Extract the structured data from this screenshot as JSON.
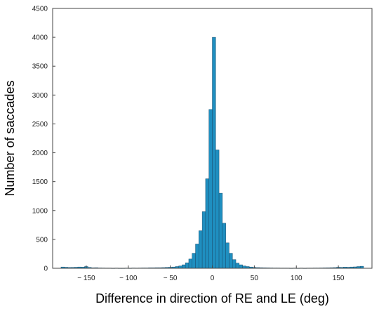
{
  "chart_data": {
    "type": "bar",
    "xlabel": "Difference in direction of RE and LE (deg)",
    "ylabel": "Number of saccades",
    "xlim": [
      -190,
      190
    ],
    "ylim": [
      0,
      4500
    ],
    "bin_width": 4,
    "bar_color": "#1f8fc0",
    "bar_edge_color": "#1a4f70",
    "x_ticks": [
      -150,
      -100,
      -50,
      0,
      50,
      100,
      150
    ],
    "x_tick_labels": [
      "− 150",
      "− 100",
      "− 50",
      "0",
      "50",
      "100",
      "150"
    ],
    "y_ticks": [
      0,
      500,
      1000,
      1500,
      2000,
      2500,
      3000,
      3500,
      4000,
      4500
    ],
    "y_tick_labels": [
      "0",
      "500",
      "1000",
      "1500",
      "2000",
      "2500",
      "3000",
      "3500",
      "4000",
      "4500"
    ],
    "bins": [
      {
        "x": -178,
        "y": 22
      },
      {
        "x": -174,
        "y": 18
      },
      {
        "x": -170,
        "y": 14
      },
      {
        "x": -166,
        "y": 15
      },
      {
        "x": -162,
        "y": 18
      },
      {
        "x": -158,
        "y": 22
      },
      {
        "x": -154,
        "y": 20
      },
      {
        "x": -150,
        "y": 30
      },
      {
        "x": -146,
        "y": 15
      },
      {
        "x": -142,
        "y": 8
      },
      {
        "x": -138,
        "y": 10
      },
      {
        "x": -134,
        "y": 6
      },
      {
        "x": -130,
        "y": 5
      },
      {
        "x": -126,
        "y": 4
      },
      {
        "x": -122,
        "y": 4
      },
      {
        "x": -118,
        "y": 3
      },
      {
        "x": -114,
        "y": 4
      },
      {
        "x": -110,
        "y": 3
      },
      {
        "x": -106,
        "y": 3
      },
      {
        "x": -102,
        "y": 4
      },
      {
        "x": -98,
        "y": 3
      },
      {
        "x": -94,
        "y": 5
      },
      {
        "x": -90,
        "y": 4
      },
      {
        "x": -86,
        "y": 5
      },
      {
        "x": -82,
        "y": 6
      },
      {
        "x": -78,
        "y": 6
      },
      {
        "x": -74,
        "y": 8
      },
      {
        "x": -70,
        "y": 8
      },
      {
        "x": -66,
        "y": 10
      },
      {
        "x": -62,
        "y": 10
      },
      {
        "x": -58,
        "y": 12
      },
      {
        "x": -54,
        "y": 15
      },
      {
        "x": -50,
        "y": 18
      },
      {
        "x": -46,
        "y": 22
      },
      {
        "x": -42,
        "y": 30
      },
      {
        "x": -38,
        "y": 40
      },
      {
        "x": -34,
        "y": 60
      },
      {
        "x": -30,
        "y": 95
      },
      {
        "x": -26,
        "y": 160
      },
      {
        "x": -22,
        "y": 260
      },
      {
        "x": -18,
        "y": 420
      },
      {
        "x": -14,
        "y": 650
      },
      {
        "x": -10,
        "y": 980
      },
      {
        "x": -6,
        "y": 1550
      },
      {
        "x": -2,
        "y": 2750
      },
      {
        "x": 2,
        "y": 4000
      },
      {
        "x": 6,
        "y": 2050
      },
      {
        "x": 10,
        "y": 1300
      },
      {
        "x": 14,
        "y": 780
      },
      {
        "x": 18,
        "y": 440
      },
      {
        "x": 22,
        "y": 260
      },
      {
        "x": 26,
        "y": 150
      },
      {
        "x": 30,
        "y": 90
      },
      {
        "x": 34,
        "y": 60
      },
      {
        "x": 38,
        "y": 40
      },
      {
        "x": 42,
        "y": 30
      },
      {
        "x": 46,
        "y": 22
      },
      {
        "x": 50,
        "y": 15
      },
      {
        "x": 54,
        "y": 12
      },
      {
        "x": 58,
        "y": 10
      },
      {
        "x": 62,
        "y": 8
      },
      {
        "x": 66,
        "y": 7
      },
      {
        "x": 70,
        "y": 6
      },
      {
        "x": 74,
        "y": 5
      },
      {
        "x": 78,
        "y": 5
      },
      {
        "x": 82,
        "y": 4
      },
      {
        "x": 86,
        "y": 4
      },
      {
        "x": 90,
        "y": 4
      },
      {
        "x": 94,
        "y": 3
      },
      {
        "x": 98,
        "y": 4
      },
      {
        "x": 102,
        "y": 3
      },
      {
        "x": 106,
        "y": 4
      },
      {
        "x": 110,
        "y": 3
      },
      {
        "x": 114,
        "y": 4
      },
      {
        "x": 118,
        "y": 4
      },
      {
        "x": 122,
        "y": 5
      },
      {
        "x": 126,
        "y": 5
      },
      {
        "x": 130,
        "y": 6
      },
      {
        "x": 134,
        "y": 7
      },
      {
        "x": 138,
        "y": 8
      },
      {
        "x": 142,
        "y": 10
      },
      {
        "x": 146,
        "y": 12
      },
      {
        "x": 150,
        "y": 18
      },
      {
        "x": 154,
        "y": 16
      },
      {
        "x": 158,
        "y": 20
      },
      {
        "x": 162,
        "y": 18
      },
      {
        "x": 166,
        "y": 22
      },
      {
        "x": 170,
        "y": 24
      },
      {
        "x": 174,
        "y": 30
      },
      {
        "x": 178,
        "y": 35
      }
    ]
  }
}
